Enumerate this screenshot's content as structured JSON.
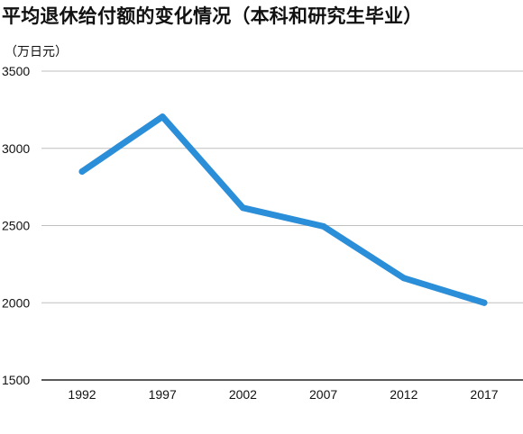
{
  "chart_data": {
    "type": "line",
    "title": "平均退休给付额的变化情况（本科和研究生毕业）",
    "unit_label": "（万日元）",
    "x": [
      "1992",
      "1997",
      "2002",
      "2007",
      "2012",
      "2017"
    ],
    "series": [
      {
        "values": [
          2850,
          3205,
          2615,
          2495,
          2160,
          2000
        ]
      }
    ],
    "ylim": [
      1500,
      3500
    ],
    "yticks": [
      "1500",
      "2000",
      "2500",
      "3000",
      "3500"
    ],
    "grid": true,
    "line_color": "#2b8ed8"
  }
}
